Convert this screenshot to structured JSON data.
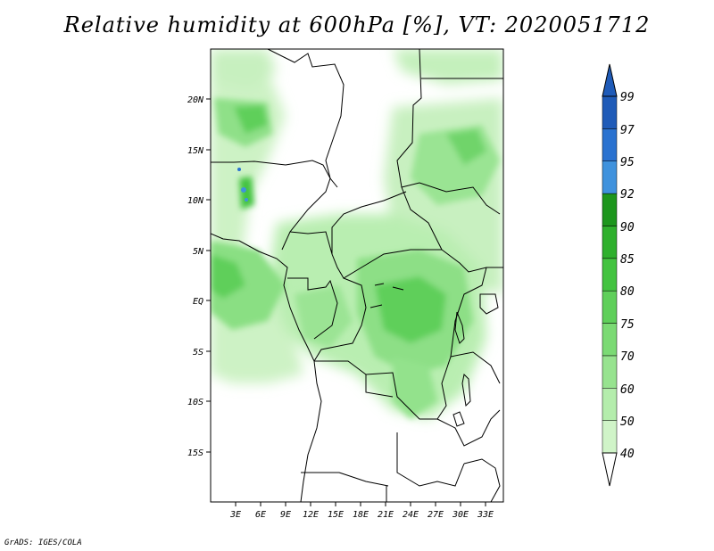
{
  "title": "Relative humidity at 600hPa [%], VT: 2020051712",
  "credit": "GrADS: IGES/COLA",
  "lat_ticks": [
    "20N",
    "15N",
    "10N",
    "5N",
    "EQ",
    "5S",
    "10S",
    "15S"
  ],
  "lon_ticks": [
    "3E",
    "6E",
    "9E",
    "12E",
    "15E",
    "18E",
    "21E",
    "24E",
    "27E",
    "30E",
    "33E"
  ],
  "colorbar": {
    "labels": [
      "40",
      "50",
      "60",
      "70",
      "75",
      "80",
      "85",
      "90",
      "92",
      "95",
      "97",
      "99"
    ],
    "colors": [
      "#e8fae4",
      "#d0f4c8",
      "#b4edac",
      "#97e38f",
      "#7bda74",
      "#5fcf5a",
      "#43c340",
      "#2fb02d",
      "#1d961d",
      "#3f92dd",
      "#2a72d0",
      "#1f5bb8"
    ]
  },
  "map_data": {
    "region": "Central Africa",
    "lon_range": [
      0,
      35
    ],
    "lat_range": [
      -20,
      24
    ],
    "variable": "relative humidity",
    "level": "600hPa",
    "units": "%"
  }
}
